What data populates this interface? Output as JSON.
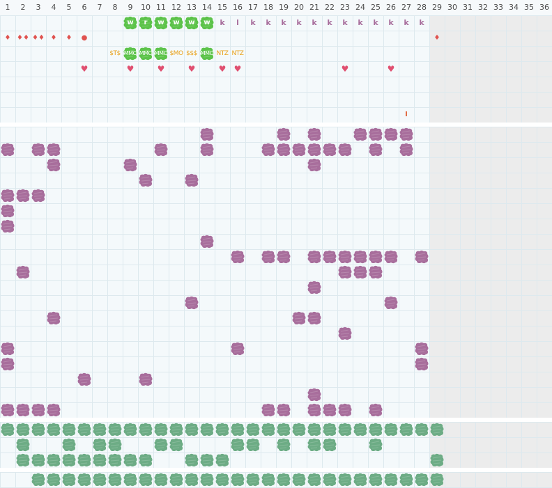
{
  "columns": [
    "1",
    "2",
    "3",
    "4",
    "5",
    "6",
    "7",
    "8",
    "9",
    "10",
    "11",
    "12",
    "13",
    "14",
    "15",
    "16",
    "17",
    "18",
    "19",
    "20",
    "21",
    "22",
    "23",
    "24",
    "25",
    "26",
    "27",
    "28",
    "29",
    "30",
    "31",
    "32",
    "33",
    "34",
    "35",
    "36"
  ],
  "colors": {
    "grid_line": "#dde9ee",
    "grid_bg": "#f4f9fb",
    "disabled_bg": "#ececec",
    "purple_blob": "#a86e9c",
    "green_blob": "#6dac85",
    "lime_blob": "#5cc34a",
    "letter": "#a86e9c",
    "drop": "#e0524f",
    "heart": "#e05070",
    "money": "#e9a11a"
  },
  "top_section": {
    "row1_green": [
      {
        "col": 9,
        "label": "w"
      },
      {
        "col": 10,
        "label": "r"
      },
      {
        "col": 11,
        "label": "w"
      },
      {
        "col": 12,
        "label": "w"
      },
      {
        "col": 13,
        "label": "w"
      },
      {
        "col": 14,
        "label": "w"
      }
    ],
    "row1_letters": [
      {
        "col": 15,
        "label": "k"
      },
      {
        "col": 16,
        "label": "l"
      },
      {
        "col": 17,
        "label": "k"
      },
      {
        "col": 18,
        "label": "k"
      },
      {
        "col": 19,
        "label": "k"
      },
      {
        "col": 20,
        "label": "k"
      },
      {
        "col": 21,
        "label": "k"
      },
      {
        "col": 22,
        "label": "k"
      },
      {
        "col": 23,
        "label": "k"
      },
      {
        "col": 24,
        "label": "k"
      },
      {
        "col": 25,
        "label": "k"
      },
      {
        "col": 26,
        "label": "k"
      },
      {
        "col": 27,
        "label": "k"
      },
      {
        "col": 28,
        "label": "k"
      }
    ],
    "row2_drops": [
      {
        "col": 1,
        "label": "♦"
      },
      {
        "col": 2,
        "label": "♦♦"
      },
      {
        "col": 3,
        "label": "♦♦"
      },
      {
        "col": 4,
        "label": "♦"
      },
      {
        "col": 5,
        "label": "♦"
      },
      {
        "col": 6,
        "label": "●"
      },
      {
        "col": 29,
        "label": "♦"
      }
    ],
    "row3_money": [
      {
        "col": 8,
        "label": "$T$",
        "green": false
      },
      {
        "col": 9,
        "label": "MMO",
        "green": true
      },
      {
        "col": 10,
        "label": "MMO",
        "green": true
      },
      {
        "col": 11,
        "label": "MMO",
        "green": true
      },
      {
        "col": 12,
        "label": "$MO",
        "green": false
      },
      {
        "col": 13,
        "label": "$$$",
        "green": false
      },
      {
        "col": 14,
        "label": "MMO",
        "green": true
      },
      {
        "col": 15,
        "label": "NTZ",
        "green": false
      },
      {
        "col": 16,
        "label": "NTZ",
        "green": false
      }
    ],
    "row4_hearts": [
      6,
      9,
      11,
      13,
      15,
      16,
      23,
      26
    ],
    "heart_symbol": "♥",
    "row7_mark": {
      "col": 27,
      "label": "I"
    }
  },
  "purple_section": {
    "rows": [
      [
        14,
        19,
        21,
        24,
        25,
        26,
        27
      ],
      [
        1,
        3,
        4,
        11,
        14,
        18,
        19,
        20,
        21,
        22,
        23,
        25,
        27
      ],
      [
        4,
        9,
        21
      ],
      [
        10,
        13
      ],
      [
        1,
        2,
        3
      ],
      [
        1
      ],
      [
        1
      ],
      [
        14
      ],
      [
        16,
        18,
        19,
        21,
        22,
        23,
        24,
        25,
        26,
        28
      ],
      [
        2,
        23,
        24,
        25
      ],
      [
        21
      ],
      [
        13,
        26
      ],
      [
        4,
        20,
        21
      ],
      [
        23
      ],
      [
        1,
        16,
        28
      ],
      [
        1,
        28
      ],
      [
        6,
        10
      ],
      [
        21
      ],
      [
        1,
        2,
        3,
        4,
        18,
        19,
        21,
        22,
        23,
        25
      ]
    ]
  },
  "green_section": {
    "rows": [
      [
        1,
        2,
        3,
        4,
        5,
        6,
        7,
        8,
        9,
        10,
        11,
        12,
        13,
        14,
        15,
        16,
        17,
        18,
        19,
        20,
        21,
        22,
        23,
        24,
        25,
        26,
        27,
        28,
        29
      ],
      [
        2,
        5,
        7,
        8,
        11,
        12,
        16,
        17,
        19,
        21,
        22,
        25
      ],
      [
        2,
        3,
        4,
        5,
        6,
        7,
        8,
        9,
        10,
        13,
        14,
        15,
        29
      ]
    ]
  },
  "bottom_section": {
    "rows": [
      [
        3,
        4,
        5,
        6,
        7,
        8,
        9,
        10,
        11,
        12,
        13,
        14,
        15,
        16,
        17,
        18,
        19,
        20,
        21,
        22,
        23,
        24,
        25,
        26,
        27,
        28,
        29
      ]
    ]
  }
}
